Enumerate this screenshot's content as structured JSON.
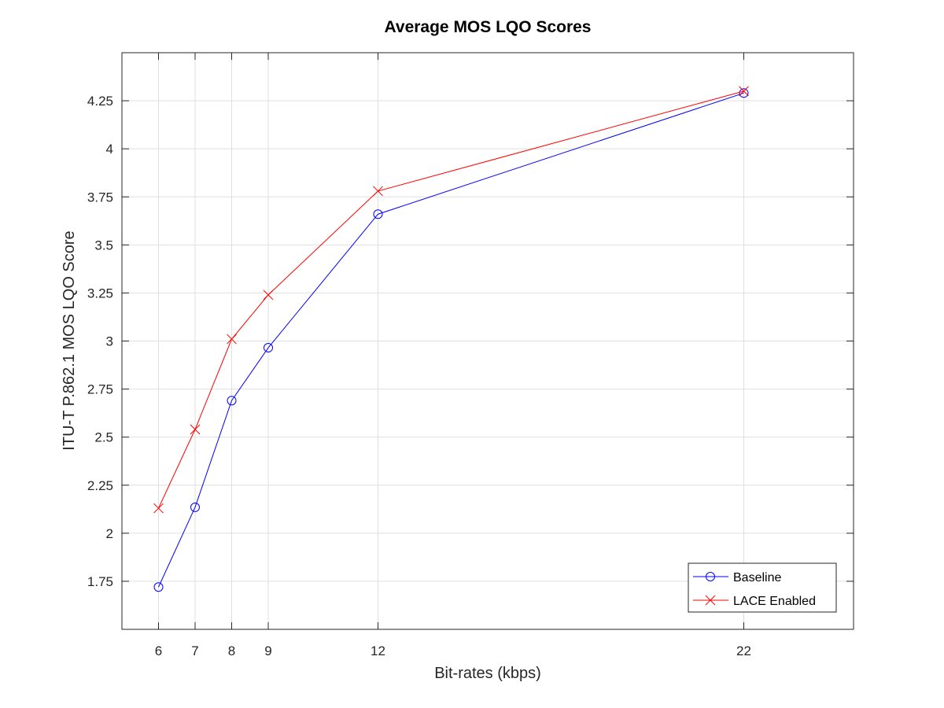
{
  "chart_data": {
    "type": "line",
    "title": "Average MOS LQO Scores",
    "xlabel": "Bit-rates (kbps)",
    "ylabel": "ITU-T P.862.1 MOS LQO Score",
    "x": [
      6,
      7,
      8,
      9,
      12,
      22
    ],
    "xticks": [
      "6",
      "7",
      "8",
      "9",
      "12",
      "22"
    ],
    "yticks": [
      "1.75",
      "2",
      "2.25",
      "2.5",
      "2.75",
      "3",
      "3.25",
      "3.5",
      "3.75",
      "4",
      "4.25"
    ],
    "xlim": [
      5,
      25
    ],
    "ylim": [
      1.5,
      4.5
    ],
    "grid": true,
    "legend_position": "bottom-right",
    "series": [
      {
        "name": "Baseline",
        "values": [
          1.72,
          2.135,
          2.69,
          2.965,
          3.66,
          4.29
        ],
        "color": "#0000ff",
        "marker": "circle"
      },
      {
        "name": "LACE Enabled",
        "values": [
          2.13,
          2.54,
          3.01,
          3.24,
          3.78,
          4.3
        ],
        "color": "#ff0000",
        "marker": "cross"
      }
    ]
  }
}
